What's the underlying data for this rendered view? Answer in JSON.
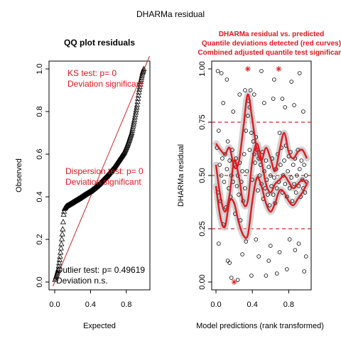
{
  "figure_title": "DHARMa residual",
  "chart_data": [
    {
      "type": "scatter",
      "title": "QQ plot residuals",
      "xlabel": "Expected",
      "ylabel": "Observed",
      "xlim": [
        0,
        1
      ],
      "ylim": [
        0,
        1
      ],
      "x_ticks": [
        "0.0",
        "0.4",
        "0.8"
      ],
      "y_ticks": [
        "0.0",
        "0.2",
        "0.4",
        "0.6",
        "0.8",
        "1.0"
      ],
      "marker": "triangle",
      "reference_line": {
        "from": [
          0,
          0
        ],
        "to": [
          1,
          1
        ],
        "color": "#cc2b2b"
      },
      "qq_curve": [
        [
          0.005,
          0.01
        ],
        [
          0.02,
          0.03
        ],
        [
          0.04,
          0.06
        ],
        [
          0.06,
          0.12
        ],
        [
          0.075,
          0.18
        ],
        [
          0.09,
          0.25
        ],
        [
          0.1,
          0.32
        ],
        [
          0.11,
          0.345
        ],
        [
          0.13,
          0.355
        ],
        [
          0.17,
          0.365
        ],
        [
          0.22,
          0.378
        ],
        [
          0.28,
          0.393
        ],
        [
          0.34,
          0.41
        ],
        [
          0.4,
          0.425
        ],
        [
          0.46,
          0.445
        ],
        [
          0.5,
          0.46
        ],
        [
          0.54,
          0.478
        ],
        [
          0.58,
          0.495
        ],
        [
          0.62,
          0.515
        ],
        [
          0.66,
          0.535
        ],
        [
          0.7,
          0.56
        ],
        [
          0.74,
          0.585
        ],
        [
          0.78,
          0.61
        ],
        [
          0.82,
          0.65
        ],
        [
          0.86,
          0.7
        ],
        [
          0.89,
          0.76
        ],
        [
          0.92,
          0.83
        ],
        [
          0.94,
          0.89
        ],
        [
          0.96,
          0.94
        ],
        [
          0.98,
          0.98
        ],
        [
          0.995,
          1.0
        ]
      ],
      "annotations": {
        "ks": [
          "KS test: p= 0",
          "Deviation  significant"
        ],
        "dispersion": [
          "Dispersion test: p= 0",
          "Deviation  significant"
        ],
        "outlier": [
          "Outlier test: p= 0.49619",
          "Deviation  n.s."
        ]
      },
      "colors": {
        "significant": "#e0191f",
        "ns": "#000000"
      }
    },
    {
      "type": "scatter",
      "title": [
        "DHARMa residual vs. predicted",
        "Quantile deviations detected (red curves)",
        "Combined adjusted quantile test significant"
      ],
      "xlabel": "Model predictions (rank transformed)",
      "ylabel": "DHARMa residual",
      "xlim": [
        0,
        1
      ],
      "ylim": [
        0,
        1
      ],
      "x_ticks": [
        "0.0",
        "0.4",
        "0.8"
      ],
      "y_ticks": [
        "0.00",
        "0.25",
        "0.50",
        "0.75",
        "1.00"
      ],
      "reference_lines": [
        0.25,
        0.5,
        0.75
      ],
      "outliers": [
        [
          0.35,
          1.0
        ],
        [
          0.69,
          1.0
        ],
        [
          0.2,
          0.0
        ]
      ],
      "quantile_curves": [
        {
          "name": "0.75",
          "points": [
            [
              0.0,
              0.65
            ],
            [
              0.05,
              0.62
            ],
            [
              0.1,
              0.6
            ],
            [
              0.15,
              0.63
            ],
            [
              0.2,
              0.54
            ],
            [
              0.25,
              0.56
            ],
            [
              0.3,
              0.72
            ],
            [
              0.35,
              0.88
            ],
            [
              0.4,
              0.76
            ],
            [
              0.45,
              0.62
            ],
            [
              0.5,
              0.57
            ],
            [
              0.55,
              0.63
            ],
            [
              0.6,
              0.58
            ],
            [
              0.65,
              0.52
            ],
            [
              0.7,
              0.62
            ],
            [
              0.75,
              0.7
            ],
            [
              0.8,
              0.61
            ],
            [
              0.85,
              0.58
            ],
            [
              0.9,
              0.61
            ],
            [
              0.95,
              0.62
            ],
            [
              1.0,
              0.58
            ]
          ]
        },
        {
          "name": "0.5",
          "points": [
            [
              0.0,
              0.55
            ],
            [
              0.05,
              0.4
            ],
            [
              0.1,
              0.33
            ],
            [
              0.15,
              0.41
            ],
            [
              0.2,
              0.57
            ],
            [
              0.25,
              0.5
            ],
            [
              0.3,
              0.37
            ],
            [
              0.35,
              0.38
            ],
            [
              0.4,
              0.57
            ],
            [
              0.45,
              0.65
            ],
            [
              0.5,
              0.57
            ],
            [
              0.55,
              0.46
            ],
            [
              0.6,
              0.42
            ],
            [
              0.65,
              0.46
            ],
            [
              0.7,
              0.48
            ],
            [
              0.75,
              0.5
            ],
            [
              0.8,
              0.47
            ],
            [
              0.85,
              0.44
            ],
            [
              0.9,
              0.46
            ],
            [
              0.95,
              0.48
            ],
            [
              1.0,
              0.46
            ]
          ]
        },
        {
          "name": "0.25",
          "points": [
            [
              0.0,
              0.45
            ],
            [
              0.05,
              0.3
            ],
            [
              0.1,
              0.26
            ],
            [
              0.15,
              0.38
            ],
            [
              0.2,
              0.37
            ],
            [
              0.25,
              0.28
            ],
            [
              0.3,
              0.22
            ],
            [
              0.35,
              0.22
            ],
            [
              0.4,
              0.38
            ],
            [
              0.45,
              0.49
            ],
            [
              0.5,
              0.45
            ],
            [
              0.55,
              0.37
            ],
            [
              0.6,
              0.33
            ],
            [
              0.65,
              0.37
            ],
            [
              0.7,
              0.43
            ],
            [
              0.75,
              0.42
            ],
            [
              0.8,
              0.38
            ],
            [
              0.85,
              0.36
            ],
            [
              0.9,
              0.39
            ],
            [
              0.95,
              0.42
            ],
            [
              1.0,
              0.46
            ]
          ]
        }
      ],
      "points": [
        [
          0.01,
          0.63
        ],
        [
          0.02,
          0.42
        ],
        [
          0.03,
          0.71
        ],
        [
          0.04,
          0.55
        ],
        [
          0.05,
          0.38
        ],
        [
          0.06,
          0.5
        ],
        [
          0.07,
          0.58
        ],
        [
          0.08,
          0.27
        ],
        [
          0.09,
          0.47
        ],
        [
          0.1,
          0.6
        ],
        [
          0.11,
          0.35
        ],
        [
          0.12,
          0.53
        ],
        [
          0.13,
          0.66
        ],
        [
          0.14,
          0.44
        ],
        [
          0.15,
          0.57
        ],
        [
          0.16,
          0.4
        ],
        [
          0.17,
          0.5
        ],
        [
          0.18,
          0.62
        ],
        [
          0.19,
          0.47
        ],
        [
          0.2,
          0.55
        ],
        [
          0.21,
          0.32
        ],
        [
          0.22,
          0.58
        ],
        [
          0.23,
          0.45
        ],
        [
          0.24,
          0.5
        ],
        [
          0.25,
          0.41
        ],
        [
          0.26,
          0.56
        ],
        [
          0.27,
          0.29
        ],
        [
          0.28,
          0.47
        ],
        [
          0.29,
          0.52
        ],
        [
          0.3,
          0.38
        ],
        [
          0.31,
          0.6
        ],
        [
          0.32,
          0.44
        ],
        [
          0.33,
          0.71
        ],
        [
          0.34,
          0.52
        ],
        [
          0.35,
          0.78
        ],
        [
          0.36,
          0.85
        ],
        [
          0.37,
          0.62
        ],
        [
          0.38,
          0.9
        ],
        [
          0.39,
          0.7
        ],
        [
          0.4,
          0.48
        ],
        [
          0.41,
          0.66
        ],
        [
          0.42,
          0.6
        ],
        [
          0.43,
          0.56
        ],
        [
          0.44,
          0.68
        ],
        [
          0.45,
          0.62
        ],
        [
          0.46,
          0.43
        ],
        [
          0.47,
          0.58
        ],
        [
          0.48,
          0.5
        ],
        [
          0.49,
          0.55
        ],
        [
          0.5,
          0.46
        ],
        [
          0.51,
          0.61
        ],
        [
          0.52,
          0.39
        ],
        [
          0.53,
          0.52
        ],
        [
          0.54,
          0.44
        ],
        [
          0.55,
          0.57
        ],
        [
          0.56,
          0.48
        ],
        [
          0.57,
          0.41
        ],
        [
          0.58,
          0.54
        ],
        [
          0.59,
          0.36
        ],
        [
          0.6,
          0.5
        ],
        [
          0.61,
          0.45
        ],
        [
          0.62,
          0.58
        ],
        [
          0.63,
          0.41
        ],
        [
          0.64,
          0.49
        ],
        [
          0.65,
          0.37
        ],
        [
          0.66,
          0.53
        ],
        [
          0.67,
          0.44
        ],
        [
          0.68,
          0.6
        ],
        [
          0.69,
          0.47
        ],
        [
          0.7,
          0.7
        ],
        [
          0.71,
          0.55
        ],
        [
          0.72,
          0.63
        ],
        [
          0.73,
          0.42
        ],
        [
          0.74,
          0.5
        ],
        [
          0.75,
          0.57
        ],
        [
          0.76,
          0.46
        ],
        [
          0.77,
          0.64
        ],
        [
          0.78,
          0.4
        ],
        [
          0.79,
          0.52
        ],
        [
          0.8,
          0.59
        ],
        [
          0.81,
          0.44
        ],
        [
          0.82,
          0.61
        ],
        [
          0.83,
          0.49
        ],
        [
          0.84,
          0.38
        ],
        [
          0.85,
          0.55
        ],
        [
          0.86,
          0.46
        ],
        [
          0.87,
          0.58
        ],
        [
          0.88,
          0.42
        ],
        [
          0.89,
          0.5
        ],
        [
          0.9,
          0.62
        ],
        [
          0.91,
          0.45
        ],
        [
          0.92,
          0.53
        ],
        [
          0.93,
          0.4
        ],
        [
          0.94,
          0.57
        ],
        [
          0.95,
          0.48
        ],
        [
          0.96,
          0.44
        ],
        [
          0.97,
          0.55
        ],
        [
          0.98,
          0.42
        ],
        [
          0.99,
          0.5
        ],
        [
          0.995,
          0.47
        ],
        [
          0.02,
          0.99
        ],
        [
          0.06,
          0.98
        ],
        [
          0.12,
          0.95
        ],
        [
          0.17,
          0.02
        ],
        [
          0.24,
          0.01
        ],
        [
          0.29,
          0.13
        ],
        [
          0.33,
          0.19
        ],
        [
          0.39,
          0.03
        ],
        [
          0.44,
          0.2
        ],
        [
          0.5,
          0.99
        ],
        [
          0.55,
          0.03
        ],
        [
          0.6,
          0.17
        ],
        [
          0.64,
          0.95
        ],
        [
          0.67,
          0.04
        ],
        [
          0.73,
          0.86
        ],
        [
          0.78,
          0.06
        ],
        [
          0.83,
          0.94
        ],
        [
          0.87,
          0.15
        ],
        [
          0.92,
          0.98
        ],
        [
          0.97,
          0.05
        ],
        [
          0.03,
          0.18
        ],
        [
          0.08,
          0.84
        ],
        [
          0.13,
          0.1
        ],
        [
          0.19,
          0.8
        ],
        [
          0.26,
          0.88
        ],
        [
          0.32,
          0.9
        ],
        [
          0.42,
          0.88
        ],
        [
          0.47,
          0.12
        ],
        [
          0.53,
          0.84
        ],
        [
          0.58,
          0.1
        ],
        [
          0.63,
          0.86
        ],
        [
          0.7,
          0.14
        ],
        [
          0.76,
          0.82
        ],
        [
          0.81,
          0.2
        ],
        [
          0.86,
          0.83
        ],
        [
          0.91,
          0.18
        ],
        [
          0.96,
          0.8
        ],
        [
          0.99,
          0.12
        ],
        [
          0.15,
          0.09
        ],
        [
          0.37,
          0.82
        ]
      ],
      "colors": {
        "points": "#000000",
        "curves": "#e0191f",
        "ref_lines": "#cc2b2b",
        "band": "#c8c8c8",
        "outlier": "#e0191f"
      }
    }
  ]
}
